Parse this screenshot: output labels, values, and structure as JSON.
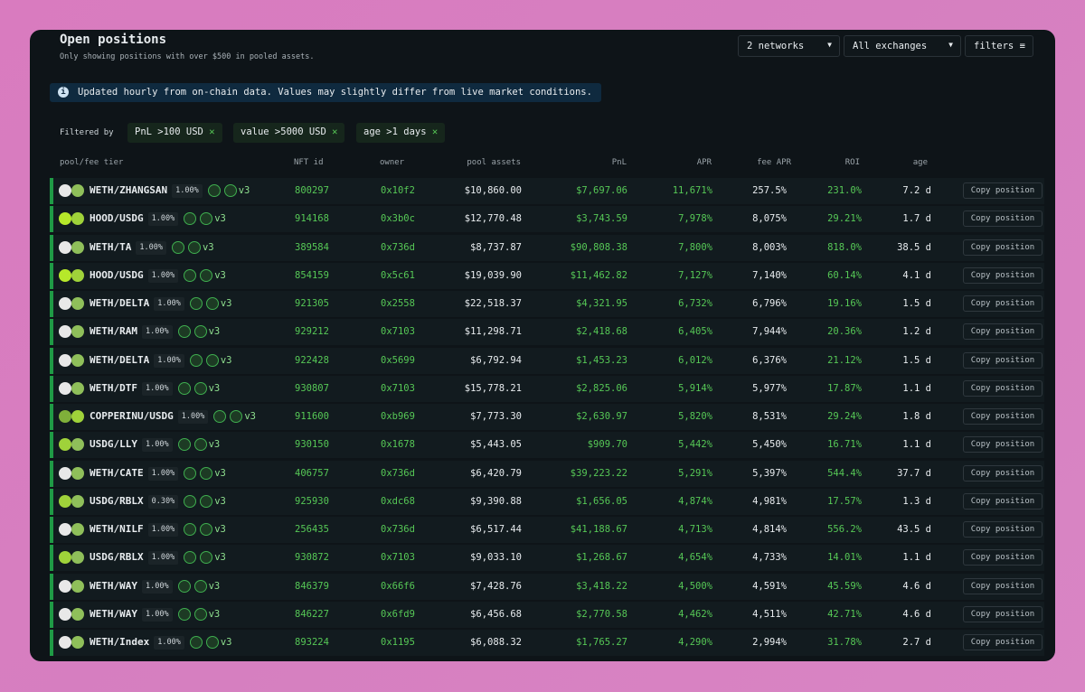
{
  "header": {
    "title": "Open positions",
    "subtitle": "Only showing positions with over $500 in pooled assets."
  },
  "controls": [
    "2 networks",
    "All exchanges",
    "filters"
  ],
  "banner": "Updated hourly from on-chain data. Values may slightly differ from live market conditions.",
  "filters": {
    "label": "Filtered by",
    "chips": [
      "PnL >100 USD",
      "value >5000 USD",
      "age >1 days"
    ]
  },
  "table": {
    "columns": [
      "pool/fee tier",
      "NFT id",
      "owner",
      "pool assets",
      "PnL",
      "APR",
      "fee APR",
      "ROI",
      "age"
    ],
    "rows": [
      [
        "WETH/ZHANGSAN",
        "1.00%",
        "v3",
        "800297",
        "0x10f2",
        "$10,860.00",
        "$7,697.06",
        "11,671%",
        "257.5%",
        "231.0%",
        "7.2 d",
        "Copy position"
      ],
      [
        "HOOD/USDG",
        "1.00%",
        "v3",
        "914168",
        "0x3b0c",
        "$12,770.48",
        "$3,743.59",
        "7,978%",
        "8,075%",
        "29.21%",
        "1.7 d",
        "Copy position"
      ],
      [
        "WETH/TA",
        "1.00%",
        "v3",
        "389584",
        "0x736d",
        "$8,737.87",
        "$90,808.38",
        "7,800%",
        "8,003%",
        "818.0%",
        "38.5 d",
        "Copy position"
      ],
      [
        "HOOD/USDG",
        "1.00%",
        "v3",
        "854159",
        "0x5c61",
        "$19,039.90",
        "$11,462.82",
        "7,127%",
        "7,140%",
        "60.14%",
        "4.1 d",
        "Copy position"
      ],
      [
        "WETH/DELTA",
        "1.00%",
        "v3",
        "921305",
        "0x2558",
        "$22,518.37",
        "$4,321.95",
        "6,732%",
        "6,796%",
        "19.16%",
        "1.5 d",
        "Copy position"
      ],
      [
        "WETH/RAM",
        "1.00%",
        "v3",
        "929212",
        "0x7103",
        "$11,298.71",
        "$2,418.68",
        "6,405%",
        "7,944%",
        "20.36%",
        "1.2 d",
        "Copy position"
      ],
      [
        "WETH/DELTA",
        "1.00%",
        "v3",
        "922428",
        "0x5699",
        "$6,792.94",
        "$1,453.23",
        "6,012%",
        "6,376%",
        "21.12%",
        "1.5 d",
        "Copy position"
      ],
      [
        "WETH/DTF",
        "1.00%",
        "v3",
        "930807",
        "0x7103",
        "$15,778.21",
        "$2,825.06",
        "5,914%",
        "5,977%",
        "17.87%",
        "1.1 d",
        "Copy position"
      ],
      [
        "COPPERINU/USDG",
        "1.00%",
        "v3",
        "911600",
        "0xb969",
        "$7,773.30",
        "$2,630.97",
        "5,820%",
        "8,531%",
        "29.24%",
        "1.8 d",
        "Copy position"
      ],
      [
        "USDG/LLY",
        "1.00%",
        "v3",
        "930150",
        "0x1678",
        "$5,443.05",
        "$909.70",
        "5,442%",
        "5,450%",
        "16.71%",
        "1.1 d",
        "Copy position"
      ],
      [
        "WETH/CATE",
        "1.00%",
        "v3",
        "406757",
        "0x736d",
        "$6,420.79",
        "$39,223.22",
        "5,291%",
        "5,397%",
        "544.4%",
        "37.7 d",
        "Copy position"
      ],
      [
        "USDG/RBLX",
        "0.30%",
        "v3",
        "925930",
        "0xdc68",
        "$9,390.88",
        "$1,656.05",
        "4,874%",
        "4,981%",
        "17.57%",
        "1.3 d",
        "Copy position"
      ],
      [
        "WETH/NILF",
        "1.00%",
        "v3",
        "256435",
        "0x736d",
        "$6,517.44",
        "$41,188.67",
        "4,713%",
        "4,814%",
        "556.2%",
        "43.5 d",
        "Copy position"
      ],
      [
        "USDG/RBLX",
        "1.00%",
        "v3",
        "930872",
        "0x7103",
        "$9,033.10",
        "$1,268.67",
        "4,654%",
        "4,733%",
        "14.01%",
        "1.1 d",
        "Copy position"
      ],
      [
        "WETH/WAY",
        "1.00%",
        "v3",
        "846379",
        "0x66f6",
        "$7,428.76",
        "$3,418.22",
        "4,500%",
        "4,591%",
        "45.59%",
        "4.6 d",
        "Copy position"
      ],
      [
        "WETH/WAY",
        "1.00%",
        "v3",
        "846227",
        "0x6fd9",
        "$6,456.68",
        "$2,770.58",
        "4,462%",
        "4,511%",
        "42.71%",
        "4.6 d",
        "Copy position"
      ],
      [
        "WETH/Index",
        "1.00%",
        "v3",
        "893224",
        "0x1195",
        "$6,088.32",
        "$1,765.27",
        "4,290%",
        "2,994%",
        "31.78%",
        "2.7 d",
        "Copy position"
      ]
    ]
  }
}
